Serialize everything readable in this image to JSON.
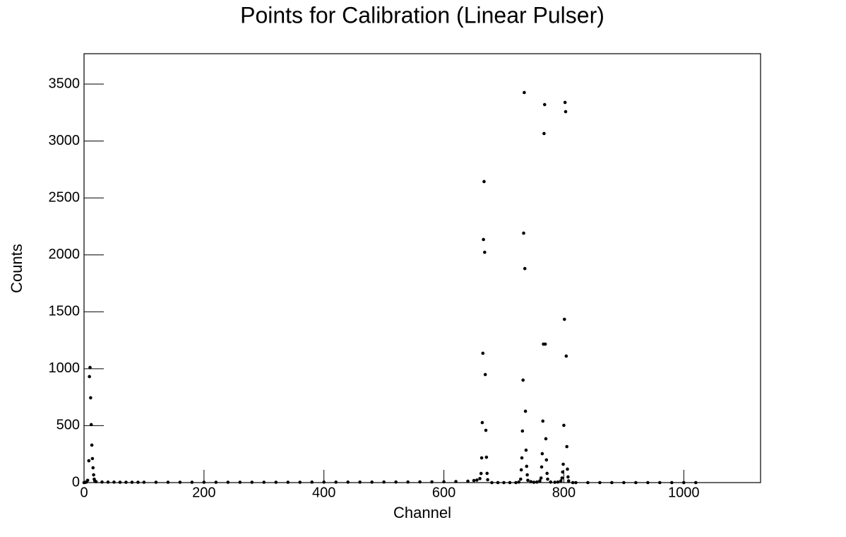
{
  "chart_data": {
    "type": "scatter",
    "title": "Points for Calibration (Linear Pulser)",
    "x_label": "Channel",
    "y_label": "Counts",
    "color": "#000000",
    "x": [
      0,
      2,
      4,
      6,
      8,
      9,
      10,
      11,
      12,
      13,
      14,
      15,
      16,
      17,
      18,
      20,
      30,
      40,
      50,
      60,
      70,
      80,
      90,
      100,
      120,
      140,
      160,
      180,
      200,
      220,
      240,
      260,
      280,
      300,
      320,
      340,
      360,
      380,
      400,
      420,
      440,
      460,
      480,
      500,
      520,
      540,
      560,
      580,
      600,
      620,
      640,
      650,
      655,
      660,
      662,
      663,
      664,
      665,
      666,
      667,
      668,
      669,
      670,
      671,
      672,
      673,
      680,
      690,
      700,
      710,
      720,
      725,
      728,
      729,
      730,
      731,
      732,
      733,
      734,
      735,
      736,
      737,
      738,
      739,
      740,
      745,
      750,
      755,
      760,
      762,
      763,
      764,
      765,
      766,
      767,
      768,
      769,
      770,
      771,
      772,
      773,
      778,
      785,
      790,
      795,
      797,
      798,
      799,
      800,
      801,
      802,
      803,
      804,
      805,
      806,
      807,
      808,
      815,
      820,
      840,
      860,
      880,
      900,
      920,
      940,
      960,
      980,
      1000,
      1020
    ],
    "values": [
      0,
      2,
      5,
      20,
      192,
      931,
      1011,
      745,
      509,
      329,
      211,
      130,
      68,
      30,
      15,
      8,
      5,
      4,
      4,
      3,
      3,
      3,
      3,
      3,
      3,
      3,
      3,
      3,
      3,
      3,
      3,
      3,
      3,
      3,
      3,
      3,
      3,
      4,
      4,
      4,
      4,
      4,
      4,
      5,
      5,
      5,
      6,
      6,
      7,
      9,
      12,
      18,
      22,
      35,
      80,
      217,
      527,
      1136,
      2135,
      2644,
      2023,
      949,
      459,
      223,
      81,
      25,
      0,
      0,
      0,
      0,
      0,
      5,
      30,
      112,
      217,
      453,
      900,
      2191,
      3426,
      1880,
      627,
      285,
      143,
      68,
      20,
      8,
      3,
      5,
      15,
      40,
      137,
      254,
      540,
      1216,
      3066,
      3320,
      1216,
      385,
      199,
      81,
      30,
      5,
      3,
      5,
      15,
      40,
      93,
      161,
      503,
      1434,
      3339,
      3258,
      1111,
      316,
      118,
      50,
      15,
      0,
      0,
      0,
      0,
      0,
      0,
      0,
      0,
      0,
      0,
      0,
      0
    ],
    "xlim": [
      0,
      1128
    ],
    "ylim": [
      0,
      3767
    ],
    "xticks": [
      0,
      200,
      400,
      600,
      800,
      1000
    ],
    "yticks": [
      0,
      500,
      1000,
      1500,
      2000,
      2500,
      3000,
      3500
    ]
  }
}
